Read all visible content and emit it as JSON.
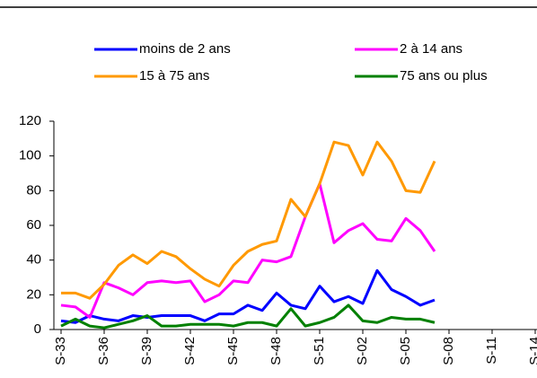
{
  "chart_data": {
    "type": "line",
    "categories": [
      "S-33",
      null,
      null,
      "S-36",
      null,
      null,
      "S-39",
      null,
      null,
      "S-42",
      null,
      null,
      "S-45",
      null,
      null,
      "S-48",
      null,
      null,
      "S-51",
      null,
      null,
      "S-02",
      null,
      null,
      "S-05",
      null,
      null,
      "S-08",
      null,
      null,
      "S-11",
      null,
      null,
      "S-14"
    ],
    "series": [
      {
        "name": "moins de 2 ans",
        "color": "#0000ff",
        "values": [
          5,
          4,
          8,
          6,
          5,
          8,
          7,
          8,
          8,
          8,
          5,
          9,
          9,
          14,
          11,
          21,
          14,
          12,
          25,
          16,
          19,
          15,
          34,
          23,
          19,
          14,
          17,
          null,
          null,
          null,
          null,
          null,
          null,
          null
        ]
      },
      {
        "name": "2 à 14 ans",
        "color": "#ff00ff",
        "values": [
          14,
          13,
          7,
          27,
          24,
          20,
          27,
          28,
          27,
          28,
          16,
          20,
          28,
          27,
          40,
          39,
          42,
          65,
          84,
          50,
          57,
          61,
          52,
          51,
          64,
          57,
          45,
          null,
          null,
          null,
          null,
          null,
          null,
          null
        ]
      },
      {
        "name": "15 à 75 ans",
        "color": "#ff9900",
        "values": [
          21,
          21,
          18,
          26,
          37,
          43,
          38,
          45,
          42,
          35,
          29,
          25,
          37,
          45,
          49,
          51,
          75,
          65,
          84,
          108,
          106,
          89,
          108,
          97,
          80,
          79,
          97,
          null,
          null,
          null,
          null,
          null,
          null,
          null
        ]
      },
      {
        "name": "75 ans ou plus",
        "color": "#008000",
        "values": [
          2,
          6,
          2,
          1,
          3,
          5,
          8,
          2,
          2,
          3,
          3,
          3,
          2,
          4,
          4,
          2,
          12,
          2,
          4,
          7,
          14,
          5,
          4,
          7,
          6,
          6,
          4,
          null,
          null,
          null,
          null,
          null,
          null,
          null
        ]
      }
    ],
    "ylim": [
      0,
      120
    ],
    "yticks": [
      0,
      20,
      40,
      60,
      80,
      100,
      120
    ],
    "grid": false
  }
}
